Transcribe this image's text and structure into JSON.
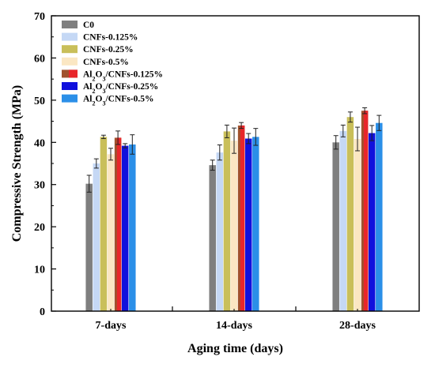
{
  "chart_data": {
    "type": "bar",
    "xlabel": "Aging time (days)",
    "ylabel": "Compressive Strength (MPa)",
    "ylim": [
      0,
      70
    ],
    "yticks": [
      0,
      10,
      20,
      30,
      40,
      50,
      60,
      70
    ],
    "categories": [
      "7-days",
      "14-days",
      "28-days"
    ],
    "grid": false,
    "legend_position": "top-left",
    "series": [
      {
        "name": "C0",
        "display_base": "C0",
        "display_sub": "",
        "display_rest": "",
        "color": "#7f7f7f",
        "values": [
          30.2,
          34.6,
          40.0
        ],
        "errors": [
          2.0,
          1.2,
          1.6
        ]
      },
      {
        "name": "CNFs-0.125%",
        "display_base": "CNFs-0.125%",
        "display_sub": "",
        "display_rest": "",
        "color": "#c5d8f5",
        "values": [
          35.0,
          37.6,
          42.7
        ],
        "errors": [
          1.1,
          1.8,
          1.4
        ]
      },
      {
        "name": "CNFs-0.25%",
        "display_base": "CNFs-0.25%",
        "display_sub": "",
        "display_rest": "",
        "color": "#c9bf5a",
        "values": [
          41.3,
          42.6,
          46.0
        ],
        "errors": [
          0.4,
          1.5,
          1.2
        ]
      },
      {
        "name": "CNFs-0.5%",
        "display_base": "CNFs-0.5%",
        "display_sub": "",
        "display_rest": "",
        "color": "#fbe7c3",
        "values": [
          37.2,
          40.4,
          40.8
        ],
        "errors": [
          1.4,
          3.0,
          2.8
        ]
      },
      {
        "name": "Al2O3/CNFs-0.125%",
        "display_base": "Al",
        "display_sub": "2",
        "display_rest": "O",
        "display_sub2": "3",
        "display_tail": "/CNFs-0.125%",
        "color": "#a0522d",
        "values": [
          41.1,
          44.0,
          47.5
        ],
        "errors": [
          1.6,
          0.7,
          0.7
        ]
      },
      {
        "name": "Al2O3/CNFs-0.25%",
        "display_base": "Al",
        "display_sub": "2",
        "display_rest": "O",
        "display_sub2": "3",
        "display_tail": "/CNFs-0.25%",
        "color": "#1010dd",
        "values": [
          39.2,
          40.9,
          42.2
        ],
        "errors": [
          0.5,
          1.2,
          1.8
        ]
      },
      {
        "name": "Al2O3/CNFs-0.5%",
        "display_base": "Al",
        "display_sub": "2",
        "display_rest": "O",
        "display_sub2": "3",
        "display_tail": "/CNFs-0.5%",
        "color": "#2b8fe8",
        "values": [
          39.5,
          41.3,
          44.6
        ],
        "errors": [
          2.3,
          2.0,
          1.8
        ]
      }
    ],
    "overlay_series_index": 4,
    "overlay_color": "#e8262a"
  }
}
